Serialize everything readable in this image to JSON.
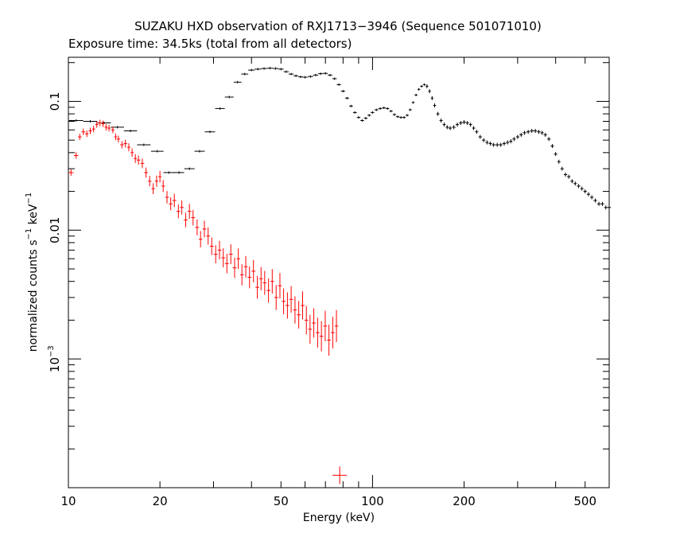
{
  "chart_data": {
    "type": "scatter",
    "title": "SUZAKU HXD observation of RXJ1713−3946 (Sequence 501071010)",
    "subtitle": "Exposure time: 34.5ks (total from all detectors)",
    "xlabel": "Energy (keV)",
    "ylabel_main": "normalized counts s",
    "ylabel_exp1": "−1",
    "ylabel_mid": " keV",
    "ylabel_exp2": "−1",
    "x_scale": "log",
    "y_scale": "log",
    "xlim": [
      10,
      600
    ],
    "ylim": [
      0.0001,
      0.22
    ],
    "x_ticks": [
      {
        "value": 10,
        "label": "10"
      },
      {
        "value": 20,
        "label": "20"
      },
      {
        "value": 50,
        "label": "50"
      },
      {
        "value": 100,
        "label": "100"
      },
      {
        "value": 200,
        "label": "200"
      },
      {
        "value": 500,
        "label": "500"
      }
    ],
    "y_ticks": [
      {
        "value": 0.1,
        "label": "0.1"
      },
      {
        "value": 0.01,
        "label": "0.01"
      },
      {
        "value": 0.001,
        "label_base": "10",
        "label_exp": "−3"
      }
    ],
    "grid": false,
    "legend": "none",
    "series": [
      {
        "color": "#000000",
        "points": [
          [
            10.6,
            0.071
          ],
          [
            11.8,
            0.07
          ],
          [
            13.1,
            0.068
          ],
          [
            14.5,
            0.063
          ],
          [
            16.0,
            0.059
          ],
          [
            17.7,
            0.046
          ],
          [
            19.6,
            0.041
          ],
          [
            21.4,
            0.028
          ],
          [
            23.1,
            0.028
          ],
          [
            25.0,
            0.03
          ],
          [
            27.0,
            0.041
          ],
          [
            29.2,
            0.058
          ],
          [
            31.5,
            0.088
          ],
          [
            33.8,
            0.108
          ],
          [
            36.0,
            0.141
          ],
          [
            38.0,
            0.163
          ],
          [
            40.0,
            0.175
          ],
          [
            42.0,
            0.178
          ],
          [
            44.0,
            0.18
          ],
          [
            46.0,
            0.181
          ],
          [
            48.0,
            0.18
          ],
          [
            50.0,
            0.178
          ],
          [
            52.0,
            0.17
          ],
          [
            54.0,
            0.163
          ],
          [
            56.0,
            0.158
          ],
          [
            58.0,
            0.155
          ],
          [
            60.0,
            0.154
          ],
          [
            62.5,
            0.156
          ],
          [
            65.0,
            0.16
          ],
          [
            67.5,
            0.164
          ],
          [
            70.0,
            0.165
          ],
          [
            72.5,
            0.16
          ],
          [
            75.0,
            0.15
          ],
          [
            77.5,
            0.135
          ],
          [
            80.0,
            0.12
          ],
          [
            82.5,
            0.106
          ],
          [
            85.0,
            0.092
          ],
          [
            87.5,
            0.082
          ],
          [
            90.0,
            0.075
          ],
          [
            92.5,
            0.071
          ],
          [
            95.0,
            0.074
          ],
          [
            97.5,
            0.078
          ],
          [
            100.0,
            0.082
          ],
          [
            103.0,
            0.086
          ],
          [
            106.0,
            0.088
          ],
          [
            109.0,
            0.089
          ],
          [
            112.0,
            0.088
          ],
          [
            115.0,
            0.084
          ],
          [
            118.0,
            0.079
          ],
          [
            121.0,
            0.076
          ],
          [
            124.0,
            0.075
          ],
          [
            127.0,
            0.075
          ],
          [
            130.0,
            0.078
          ],
          [
            133.0,
            0.086
          ],
          [
            136.0,
            0.098
          ],
          [
            139.0,
            0.112
          ],
          [
            142.0,
            0.124
          ],
          [
            145.0,
            0.131
          ],
          [
            148.0,
            0.135
          ],
          [
            151.0,
            0.131
          ],
          [
            154.0,
            0.12
          ],
          [
            157.0,
            0.106
          ],
          [
            160.0,
            0.093
          ],
          [
            164.0,
            0.08
          ],
          [
            168.0,
            0.071
          ],
          [
            172.0,
            0.066
          ],
          [
            176.0,
            0.063
          ],
          [
            180.0,
            0.062
          ],
          [
            185.0,
            0.063
          ],
          [
            190.0,
            0.066
          ],
          [
            195.0,
            0.068
          ],
          [
            200.0,
            0.069
          ],
          [
            205.0,
            0.068
          ],
          [
            210.0,
            0.066
          ],
          [
            215.0,
            0.062
          ],
          [
            220.0,
            0.058
          ],
          [
            226.0,
            0.053
          ],
          [
            232.0,
            0.05
          ],
          [
            238.0,
            0.048
          ],
          [
            244.0,
            0.047
          ],
          [
            250.0,
            0.046
          ],
          [
            257.0,
            0.046
          ],
          [
            264.0,
            0.046
          ],
          [
            271.0,
            0.047
          ],
          [
            278.0,
            0.048
          ],
          [
            285.0,
            0.049
          ],
          [
            292.0,
            0.051
          ],
          [
            300.0,
            0.053
          ],
          [
            308.0,
            0.055
          ],
          [
            316.0,
            0.057
          ],
          [
            325.0,
            0.058
          ],
          [
            334.0,
            0.059
          ],
          [
            343.0,
            0.059
          ],
          [
            352.0,
            0.058
          ],
          [
            361.0,
            0.057
          ],
          [
            370.0,
            0.055
          ],
          [
            380.0,
            0.051
          ],
          [
            390.0,
            0.045
          ],
          [
            400.0,
            0.039
          ],
          [
            410.0,
            0.034
          ],
          [
            420.0,
            0.03
          ],
          [
            431.0,
            0.027
          ],
          [
            442.0,
            0.026
          ],
          [
            453.0,
            0.024
          ],
          [
            464.0,
            0.023
          ],
          [
            476.0,
            0.022
          ],
          [
            488.0,
            0.021
          ],
          [
            500.0,
            0.02
          ],
          [
            513.0,
            0.019
          ],
          [
            526.0,
            0.018
          ],
          [
            540.0,
            0.017
          ],
          [
            555.0,
            0.016
          ],
          [
            570.0,
            0.016
          ],
          [
            585.0,
            0.015
          ],
          [
            600.0,
            0.015
          ]
        ]
      },
      {
        "color": "#ff0000",
        "points": [
          [
            10.2,
            0.028
          ],
          [
            10.6,
            0.038
          ],
          [
            10.9,
            0.053
          ],
          [
            11.2,
            0.058
          ],
          [
            11.5,
            0.056
          ],
          [
            11.8,
            0.059
          ],
          [
            12.1,
            0.061
          ],
          [
            12.4,
            0.066
          ],
          [
            12.7,
            0.068
          ],
          [
            13.0,
            0.067
          ],
          [
            13.3,
            0.063
          ],
          [
            13.6,
            0.062
          ],
          [
            14.0,
            0.06
          ],
          [
            14.3,
            0.053
          ],
          [
            14.6,
            0.051
          ],
          [
            15.0,
            0.046
          ],
          [
            15.4,
            0.047
          ],
          [
            15.8,
            0.044
          ],
          [
            16.2,
            0.04
          ],
          [
            16.6,
            0.036
          ],
          [
            17.0,
            0.035
          ],
          [
            17.5,
            0.033
          ],
          [
            18.0,
            0.028
          ],
          [
            18.5,
            0.024
          ],
          [
            19.0,
            0.021
          ],
          [
            19.5,
            0.024
          ],
          [
            20.0,
            0.026
          ],
          [
            20.5,
            0.022
          ],
          [
            21.1,
            0.018
          ],
          [
            21.7,
            0.016
          ],
          [
            22.3,
            0.017
          ],
          [
            23.0,
            0.014
          ],
          [
            23.6,
            0.015
          ],
          [
            24.3,
            0.012
          ],
          [
            25.0,
            0.014
          ],
          [
            25.7,
            0.0125
          ],
          [
            26.5,
            0.0105
          ],
          [
            27.2,
            0.0085
          ],
          [
            28.0,
            0.0102
          ],
          [
            28.8,
            0.009
          ],
          [
            29.6,
            0.0075
          ],
          [
            30.5,
            0.0065
          ],
          [
            31.4,
            0.007
          ],
          [
            32.3,
            0.0061
          ],
          [
            33.2,
            0.0055
          ],
          [
            34.2,
            0.0065
          ],
          [
            35.2,
            0.0051
          ],
          [
            36.2,
            0.006
          ],
          [
            37.2,
            0.0045
          ],
          [
            38.3,
            0.0052
          ],
          [
            39.4,
            0.0043
          ],
          [
            40.6,
            0.0048
          ],
          [
            41.8,
            0.0036
          ],
          [
            43.0,
            0.0042
          ],
          [
            44.2,
            0.0039
          ],
          [
            45.5,
            0.0034
          ],
          [
            46.8,
            0.004
          ],
          [
            48.2,
            0.003
          ],
          [
            49.6,
            0.0037
          ],
          [
            51.0,
            0.0028
          ],
          [
            52.5,
            0.0026
          ],
          [
            54.0,
            0.0029
          ],
          [
            55.6,
            0.0024
          ],
          [
            57.2,
            0.0022
          ],
          [
            58.9,
            0.0026
          ],
          [
            60.6,
            0.002
          ],
          [
            62.3,
            0.0017
          ],
          [
            64.1,
            0.0019
          ],
          [
            66.0,
            0.0016
          ],
          [
            67.9,
            0.0015
          ],
          [
            69.9,
            0.0018
          ],
          [
            71.9,
            0.0014
          ],
          [
            74.0,
            0.0016
          ],
          [
            76.1,
            0.0018
          ]
        ]
      },
      {
        "color": "#ff0000",
        "points": [
          [
            78.0,
            0.000125
          ]
        ]
      }
    ]
  }
}
